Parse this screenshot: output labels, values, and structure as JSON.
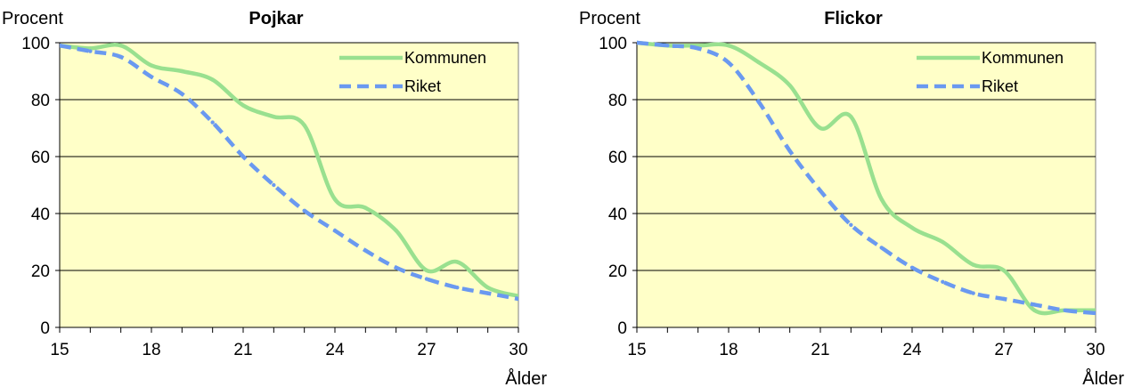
{
  "colors": {
    "plot_bg": "#FFFFC8",
    "kommunen": "#99E08F",
    "riket": "#6A99F0",
    "grid": "#000000"
  },
  "chart_data": [
    {
      "type": "line",
      "title": "Pojkar",
      "ylabel": "Procent",
      "xlabel": "Ålder",
      "xlim": [
        15,
        30
      ],
      "ylim": [
        0,
        100
      ],
      "xticks": [
        15,
        18,
        21,
        24,
        27,
        30
      ],
      "yticks": [
        0,
        20,
        40,
        60,
        80,
        100
      ],
      "grid": true,
      "legend": "top-right",
      "x": [
        15,
        16,
        17,
        18,
        19,
        20,
        21,
        22,
        23,
        24,
        25,
        26,
        27,
        28,
        29,
        30
      ],
      "series": [
        {
          "name": "Kommunen",
          "style": "solid",
          "values": [
            99,
            98,
            99,
            92,
            90,
            87,
            78,
            74,
            71,
            45,
            42,
            34,
            20,
            23,
            14,
            11
          ]
        },
        {
          "name": "Riket",
          "style": "dashed",
          "values": [
            99,
            97,
            95,
            88,
            82,
            72,
            60,
            50,
            41,
            34,
            27,
            21,
            17,
            14,
            12,
            10
          ]
        }
      ]
    },
    {
      "type": "line",
      "title": "Flickor",
      "ylabel": "Procent",
      "xlabel": "Ålder",
      "xlim": [
        15,
        30
      ],
      "ylim": [
        0,
        100
      ],
      "xticks": [
        15,
        18,
        21,
        24,
        27,
        30
      ],
      "yticks": [
        0,
        20,
        40,
        60,
        80,
        100
      ],
      "grid": true,
      "legend": "top-right",
      "x": [
        15,
        16,
        17,
        18,
        19,
        20,
        21,
        22,
        23,
        24,
        25,
        26,
        27,
        28,
        29,
        30
      ],
      "series": [
        {
          "name": "Kommunen",
          "style": "solid",
          "values": [
            100,
            99,
            99,
            99,
            93,
            85,
            70,
            74,
            45,
            35,
            30,
            22,
            20,
            6,
            6,
            6
          ]
        },
        {
          "name": "Riket",
          "style": "dashed",
          "values": [
            100,
            99,
            98,
            93,
            79,
            62,
            48,
            36,
            28,
            21,
            16,
            12,
            10,
            8,
            6,
            5
          ]
        }
      ]
    }
  ]
}
